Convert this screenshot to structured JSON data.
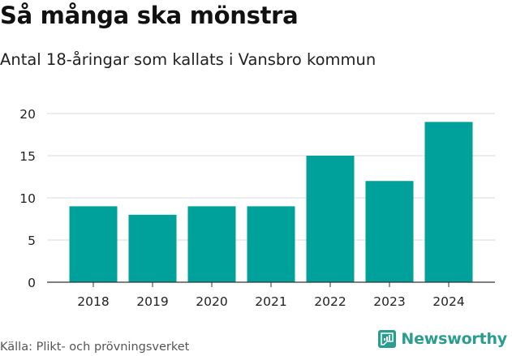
{
  "title": "Så många ska mönstra",
  "subtitle": "Antal 18-åringar som kallats i Vansbro kommun",
  "source": "Källa: Plikt- och prövningsverket",
  "brand": {
    "name": "Newsworthy",
    "icon": "newsworthy-logo-icon",
    "color": "#2a9d8f"
  },
  "colors": {
    "bar": "#00a19a",
    "grid": "#d9d9d9",
    "axis": "#333333"
  },
  "chart_data": {
    "type": "bar",
    "title": "Så många ska mönstra",
    "subtitle": "Antal 18-åringar som kallats i Vansbro kommun",
    "categories": [
      "2018",
      "2019",
      "2020",
      "2021",
      "2022",
      "2023",
      "2024"
    ],
    "values": [
      9,
      8,
      9,
      9,
      15,
      12,
      19
    ],
    "yticks": [
      "0",
      "5",
      "10",
      "15",
      "20"
    ],
    "ytick_values": [
      0,
      5,
      10,
      15,
      20
    ],
    "ylim": [
      0,
      20
    ],
    "xlabel": "",
    "ylabel": "",
    "grid": true
  }
}
